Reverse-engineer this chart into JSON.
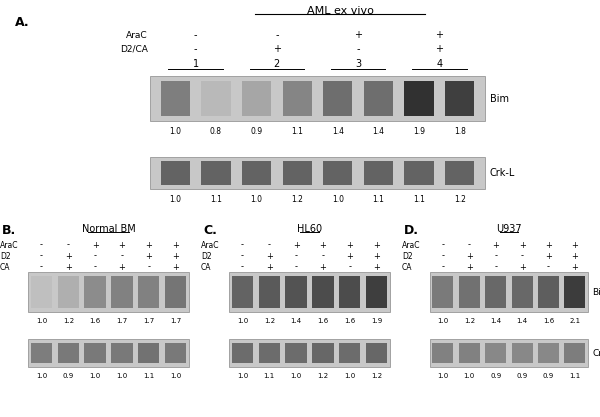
{
  "panel_A": {
    "title": "AML ex vivo",
    "araC_group_labels": [
      "-",
      "-",
      "+",
      "+"
    ],
    "d2ca_group_labels": [
      "-",
      "+",
      "-",
      "+"
    ],
    "lane_groups": [
      "1",
      "2",
      "3",
      "4"
    ],
    "bim_values": [
      "1.0",
      "0.8",
      "0.9",
      "1.1",
      "1.4",
      "1.4",
      "1.9",
      "1.8"
    ],
    "crkl_values": [
      "1.0",
      "1.1",
      "1.0",
      "1.2",
      "1.0",
      "1.1",
      "1.1",
      "1.2"
    ],
    "bim_band_intensities": [
      0.55,
      0.3,
      0.38,
      0.52,
      0.62,
      0.62,
      0.88,
      0.82
    ],
    "crkl_band_intensities": [
      0.72,
      0.72,
      0.72,
      0.72,
      0.72,
      0.72,
      0.72,
      0.72
    ],
    "n_lanes": 8
  },
  "panel_B": {
    "title": "Normal BM",
    "araC_labels": [
      "-",
      "-",
      "+",
      "+",
      "+",
      "+"
    ],
    "d2_labels": [
      "-",
      "+",
      "-",
      "-",
      "+",
      "+"
    ],
    "ca_labels": [
      "-",
      "+",
      "-",
      "+",
      "-",
      "+"
    ],
    "bim_values": [
      "1.0",
      "1.2",
      "1.6",
      "1.7",
      "1.7",
      "1.7"
    ],
    "crkl_values": [
      "1.0",
      "0.9",
      "1.0",
      "1.0",
      "1.1",
      "1.0"
    ],
    "bim_band_intensities": [
      0.28,
      0.35,
      0.5,
      0.55,
      0.55,
      0.6
    ],
    "crkl_band_intensities": [
      0.6,
      0.62,
      0.62,
      0.62,
      0.65,
      0.62
    ],
    "n_lanes": 6
  },
  "panel_C": {
    "title": "HL60",
    "araC_labels": [
      "-",
      "-",
      "+",
      "+",
      "+",
      "+"
    ],
    "d2_labels": [
      "-",
      "+",
      "-",
      "-",
      "+",
      "+"
    ],
    "ca_labels": [
      "-",
      "+",
      "-",
      "+",
      "-",
      "+"
    ],
    "bim_values": [
      "1.0",
      "1.2",
      "1.4",
      "1.6",
      "1.6",
      "1.9"
    ],
    "crkl_values": [
      "1.0",
      "1.1",
      "1.0",
      "1.2",
      "1.0",
      "1.2"
    ],
    "bim_band_intensities": [
      0.68,
      0.72,
      0.75,
      0.78,
      0.78,
      0.84
    ],
    "crkl_band_intensities": [
      0.68,
      0.68,
      0.68,
      0.7,
      0.68,
      0.7
    ],
    "n_lanes": 6
  },
  "panel_D": {
    "title": "U937",
    "araC_labels": [
      "-",
      "-",
      "+",
      "+",
      "+",
      "+"
    ],
    "d2_labels": [
      "-",
      "+",
      "-",
      "-",
      "+",
      "+"
    ],
    "ca_labels": [
      "-",
      "+",
      "-",
      "+",
      "-",
      "+"
    ],
    "bim_values": [
      "1.0",
      "1.2",
      "1.4",
      "1.4",
      "1.6",
      "2.1"
    ],
    "crkl_values": [
      "1.0",
      "1.0",
      "0.9",
      "0.9",
      "0.9",
      "1.1"
    ],
    "bim_band_intensities": [
      0.58,
      0.62,
      0.66,
      0.66,
      0.7,
      0.85
    ],
    "crkl_band_intensities": [
      0.58,
      0.58,
      0.55,
      0.55,
      0.55,
      0.6
    ],
    "n_lanes": 6
  }
}
